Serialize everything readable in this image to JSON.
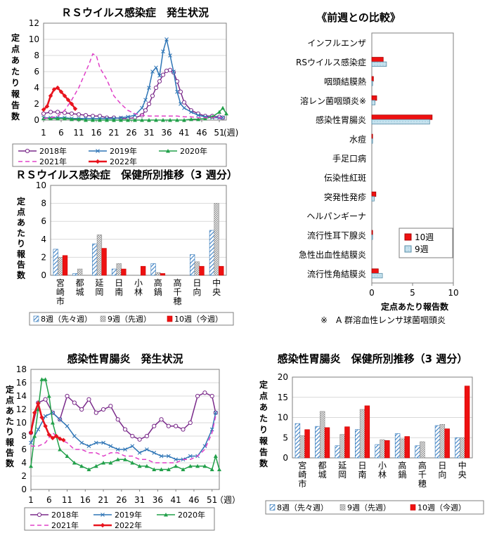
{
  "chart_data": [
    {
      "id": "rs_weekly",
      "type": "line",
      "title": "ＲＳウイルス感染症　発生状況",
      "ylabel": "定点あたり報告数",
      "x_unit": "(週)",
      "x_ticks": [
        1,
        6,
        11,
        16,
        21,
        26,
        31,
        36,
        41,
        46,
        51
      ],
      "ylim": [
        0,
        12
      ],
      "y_ticks": [
        0,
        2,
        4,
        6,
        8,
        10,
        12
      ],
      "xlim": [
        1,
        53
      ],
      "series": [
        {
          "name": "2018年",
          "color": "#7a2a8a",
          "marker": "circle-open",
          "dash": "",
          "x": [
            1,
            3,
            5,
            7,
            9,
            11,
            13,
            15,
            17,
            19,
            21,
            23,
            25,
            27,
            29,
            30,
            31,
            32,
            33,
            34,
            35,
            36,
            37,
            38,
            39,
            40,
            41,
            43,
            45,
            47,
            49,
            51,
            52
          ],
          "y": [
            0.8,
            1.0,
            1.0,
            0.9,
            0.8,
            0.7,
            0.6,
            0.5,
            0.5,
            0.3,
            0.3,
            0.2,
            0.2,
            0.3,
            0.6,
            1.2,
            2.0,
            3.0,
            4.0,
            4.8,
            5.6,
            6.1,
            6.2,
            5.9,
            4.8,
            3.5,
            2.2,
            1.2,
            0.8,
            0.5,
            0.5,
            0.4,
            0.3
          ]
        },
        {
          "name": "2019年",
          "color": "#2e75b6",
          "marker": "x",
          "dash": "",
          "x": [
            1,
            3,
            5,
            7,
            9,
            11,
            13,
            15,
            17,
            19,
            21,
            23,
            25,
            27,
            29,
            30,
            31,
            32,
            33,
            34,
            35,
            36,
            37,
            38,
            39,
            40,
            41,
            43,
            45,
            47,
            49,
            51,
            52
          ],
          "y": [
            0.3,
            0.3,
            0.3,
            0.3,
            0.2,
            0.2,
            0.2,
            0.2,
            0.2,
            0.2,
            0.2,
            0.3,
            0.4,
            0.6,
            1.5,
            2.5,
            4.0,
            6.0,
            6.5,
            5.5,
            8.5,
            10.0,
            8.0,
            6.0,
            3.5,
            2.0,
            1.5,
            1.0,
            0.6,
            0.4,
            0.3,
            0.3,
            0.3
          ]
        },
        {
          "name": "2020年",
          "color": "#22a04a",
          "marker": "triangle",
          "dash": "",
          "x": [
            1,
            3,
            5,
            7,
            9,
            11,
            13,
            15,
            17,
            19,
            21,
            23,
            25,
            27,
            29,
            31,
            33,
            35,
            37,
            39,
            41,
            43,
            45,
            47,
            49,
            51,
            52,
            53
          ],
          "y": [
            0.2,
            0.2,
            0.2,
            0.2,
            0.1,
            0.1,
            0.0,
            0.0,
            0.0,
            0.0,
            0.0,
            0.0,
            0.0,
            0.0,
            0.0,
            0.0,
            0.0,
            0.0,
            0.0,
            0.0,
            0.0,
            0.1,
            0.1,
            0.2,
            0.4,
            1.0,
            1.5,
            0.8
          ]
        },
        {
          "name": "2021年",
          "color": "#e040c8",
          "marker": "none",
          "dash": "6,4",
          "x": [
            1,
            3,
            5,
            7,
            9,
            11,
            13,
            14,
            15,
            16,
            17,
            19,
            21,
            23,
            25,
            27,
            29,
            31,
            33,
            35,
            37,
            39,
            41,
            43,
            45,
            47,
            49,
            51,
            52
          ],
          "y": [
            0.2,
            0.3,
            0.5,
            1.2,
            2.5,
            4.0,
            6.0,
            7.0,
            8.2,
            8.0,
            6.5,
            5.0,
            3.0,
            2.0,
            1.2,
            0.8,
            0.6,
            0.5,
            0.5,
            0.5,
            0.5,
            0.5,
            0.4,
            0.4,
            0.3,
            0.3,
            0.3,
            0.3,
            0.3
          ]
        },
        {
          "name": "2022年",
          "color": "#e8141e",
          "marker": "diamond",
          "dash": "",
          "x": [
            1,
            2,
            3,
            4,
            5,
            6,
            7,
            8,
            9,
            10
          ],
          "y": [
            1.3,
            1.7,
            3.0,
            3.8,
            4.0,
            3.5,
            3.0,
            2.5,
            2.0,
            1.4
          ]
        }
      ]
    },
    {
      "id": "rs_center",
      "type": "bar",
      "title": "ＲＳウイルス感染症　保健所別推移（3 週分）",
      "ylabel": "定点あたり報告数",
      "ylim": [
        0,
        10
      ],
      "y_ticks": [
        0,
        2,
        4,
        6,
        8,
        10
      ],
      "categories": [
        "宮崎市",
        "都城",
        "延岡",
        "日南",
        "小林",
        "高鍋",
        "高千穂",
        "日向",
        "中央"
      ],
      "series": [
        {
          "name": "8週（先々週）",
          "values": [
            2.9,
            0.2,
            3.5,
            0.7,
            0.0,
            1.3,
            0.0,
            2.3,
            5.0
          ]
        },
        {
          "name": "9週（先週）",
          "values": [
            2.0,
            0.7,
            4.5,
            1.3,
            0.0,
            0.3,
            0.0,
            1.5,
            8.0
          ]
        },
        {
          "name": "10週（今週）",
          "values": [
            2.2,
            0.0,
            3.0,
            0.7,
            1.0,
            0.2,
            0.0,
            1.0,
            1.0
          ]
        }
      ]
    },
    {
      "id": "compare",
      "type": "bar",
      "orientation": "horizontal",
      "title": "《前週との比較》",
      "xlabel": "定点あたり報告数",
      "xlim": [
        0,
        10
      ],
      "x_ticks": [
        0,
        5,
        10
      ],
      "categories": [
        "インフルエンザ",
        "RSウイルス感染症",
        "咽頭結膜熱",
        "溶レン菌咽頭炎※",
        "感染性胃腸炎",
        "水痘",
        "手足口病",
        "伝染性紅斑",
        "突発性発疹",
        "ヘルパンギーナ",
        "流行性耳下腺炎",
        "急性出血性結膜炎",
        "流行性角結膜炎"
      ],
      "series": [
        {
          "name": "10週",
          "values": [
            0.0,
            1.4,
            0.2,
            0.6,
            7.4,
            0.1,
            0.0,
            0.0,
            0.5,
            0.0,
            0.1,
            0.0,
            0.8
          ]
        },
        {
          "name": "9週",
          "values": [
            0.0,
            1.8,
            0.1,
            0.4,
            7.1,
            0.1,
            0.0,
            0.0,
            0.3,
            0.0,
            0.1,
            0.0,
            1.3
          ]
        }
      ],
      "footnote": "※　A 群溶血性レンサ球菌咽頭炎"
    },
    {
      "id": "gastro_weekly",
      "type": "line",
      "title": "感染性胃腸炎　発生状況",
      "ylabel": "定点あたり報告数",
      "x_unit": "（週）",
      "x_ticks": [
        1,
        6,
        11,
        16,
        21,
        26,
        31,
        36,
        41,
        46,
        51
      ],
      "ylim": [
        0,
        18
      ],
      "y_ticks": [
        0,
        2,
        4,
        6,
        8,
        10,
        12,
        14,
        16,
        18
      ],
      "xlim": [
        1,
        53
      ],
      "series": [
        {
          "name": "2018年",
          "color": "#7a2a8a",
          "marker": "circle-open",
          "dash": "",
          "x": [
            1,
            3,
            5,
            7,
            9,
            11,
            13,
            15,
            17,
            19,
            21,
            23,
            25,
            27,
            29,
            31,
            33,
            35,
            37,
            39,
            41,
            43,
            45,
            47,
            49,
            51,
            52
          ],
          "y": [
            8.5,
            13.0,
            13.5,
            11.5,
            10.5,
            14.0,
            13.0,
            12.0,
            13.5,
            11.5,
            12.0,
            12.5,
            10.5,
            9.0,
            8.0,
            7.5,
            8.0,
            9.5,
            10.5,
            9.5,
            9.5,
            9.0,
            10.0,
            14.0,
            14.5,
            14.0,
            11.5
          ]
        },
        {
          "name": "2019年",
          "color": "#2e75b6",
          "marker": "x",
          "dash": "",
          "x": [
            1,
            3,
            5,
            7,
            9,
            11,
            13,
            15,
            17,
            19,
            21,
            23,
            25,
            27,
            29,
            31,
            33,
            35,
            37,
            39,
            41,
            43,
            45,
            47,
            49,
            51,
            52
          ],
          "y": [
            7.0,
            9.0,
            11.0,
            11.5,
            10.5,
            9.5,
            8.0,
            7.0,
            6.5,
            7.0,
            7.0,
            6.5,
            6.0,
            6.0,
            6.5,
            5.5,
            6.0,
            5.5,
            5.0,
            5.0,
            4.5,
            4.5,
            5.0,
            5.0,
            6.5,
            9.0,
            11.5
          ]
        },
        {
          "name": "2020年",
          "color": "#22a04a",
          "marker": "triangle",
          "dash": "",
          "x": [
            1,
            2,
            3,
            4,
            5,
            6,
            7,
            9,
            11,
            13,
            15,
            17,
            19,
            21,
            23,
            25,
            27,
            29,
            31,
            33,
            35,
            37,
            39,
            41,
            43,
            45,
            47,
            49,
            51,
            52,
            53
          ],
          "y": [
            3.5,
            8.0,
            12.0,
            16.5,
            16.5,
            14.0,
            10.0,
            6.0,
            5.0,
            4.0,
            3.5,
            3.0,
            3.5,
            4.0,
            4.0,
            4.5,
            4.5,
            4.0,
            3.5,
            3.5,
            3.0,
            3.0,
            3.0,
            3.5,
            3.0,
            3.5,
            3.5,
            3.5,
            3.0,
            5.0,
            3.0
          ]
        },
        {
          "name": "2021年",
          "color": "#e040c8",
          "marker": "none",
          "dash": "6,4",
          "x": [
            1,
            3,
            5,
            7,
            9,
            11,
            13,
            15,
            17,
            19,
            21,
            23,
            25,
            27,
            29,
            31,
            33,
            35,
            37,
            39,
            41,
            43,
            45,
            47,
            49,
            51,
            52
          ],
          "y": [
            6.5,
            6.5,
            7.0,
            8.5,
            7.5,
            7.0,
            6.0,
            6.0,
            5.5,
            5.5,
            5.0,
            5.5,
            5.5,
            5.0,
            5.0,
            4.5,
            4.5,
            4.0,
            4.0,
            4.0,
            4.0,
            4.5,
            4.5,
            5.0,
            6.0,
            8.5,
            11.0
          ]
        },
        {
          "name": "2022年",
          "color": "#e8141e",
          "marker": "diamond",
          "dash": "",
          "x": [
            1,
            2,
            3,
            4,
            5,
            6,
            7,
            8,
            9,
            10
          ],
          "y": [
            8.5,
            11.5,
            12.9,
            10.8,
            9.5,
            8.2,
            7.7,
            8.0,
            7.6,
            7.4
          ]
        }
      ]
    },
    {
      "id": "gastro_center",
      "type": "bar",
      "title": "感染性胃腸炎　保健所別推移（3 週分）",
      "ylabel": "定点あたり報告数",
      "ylim": [
        0,
        20
      ],
      "y_ticks": [
        0,
        5,
        10,
        15,
        20
      ],
      "categories": [
        "宮崎市",
        "都城",
        "延岡",
        "日南",
        "小林",
        "高鍋",
        "高千穂",
        "日向",
        "中央"
      ],
      "series": [
        {
          "name": "8週（先々週）",
          "values": [
            8.5,
            7.8,
            3.0,
            7.0,
            3.3,
            6.0,
            3.0,
            8.0,
            5.0
          ]
        },
        {
          "name": "9週（先週）",
          "values": [
            5.5,
            11.5,
            5.8,
            12.0,
            4.5,
            4.7,
            4.0,
            8.3,
            5.0
          ]
        },
        {
          "name": "10週（今週）",
          "values": [
            7.0,
            7.5,
            7.7,
            12.9,
            4.3,
            5.3,
            0.0,
            7.2,
            17.8
          ]
        }
      ]
    }
  ]
}
